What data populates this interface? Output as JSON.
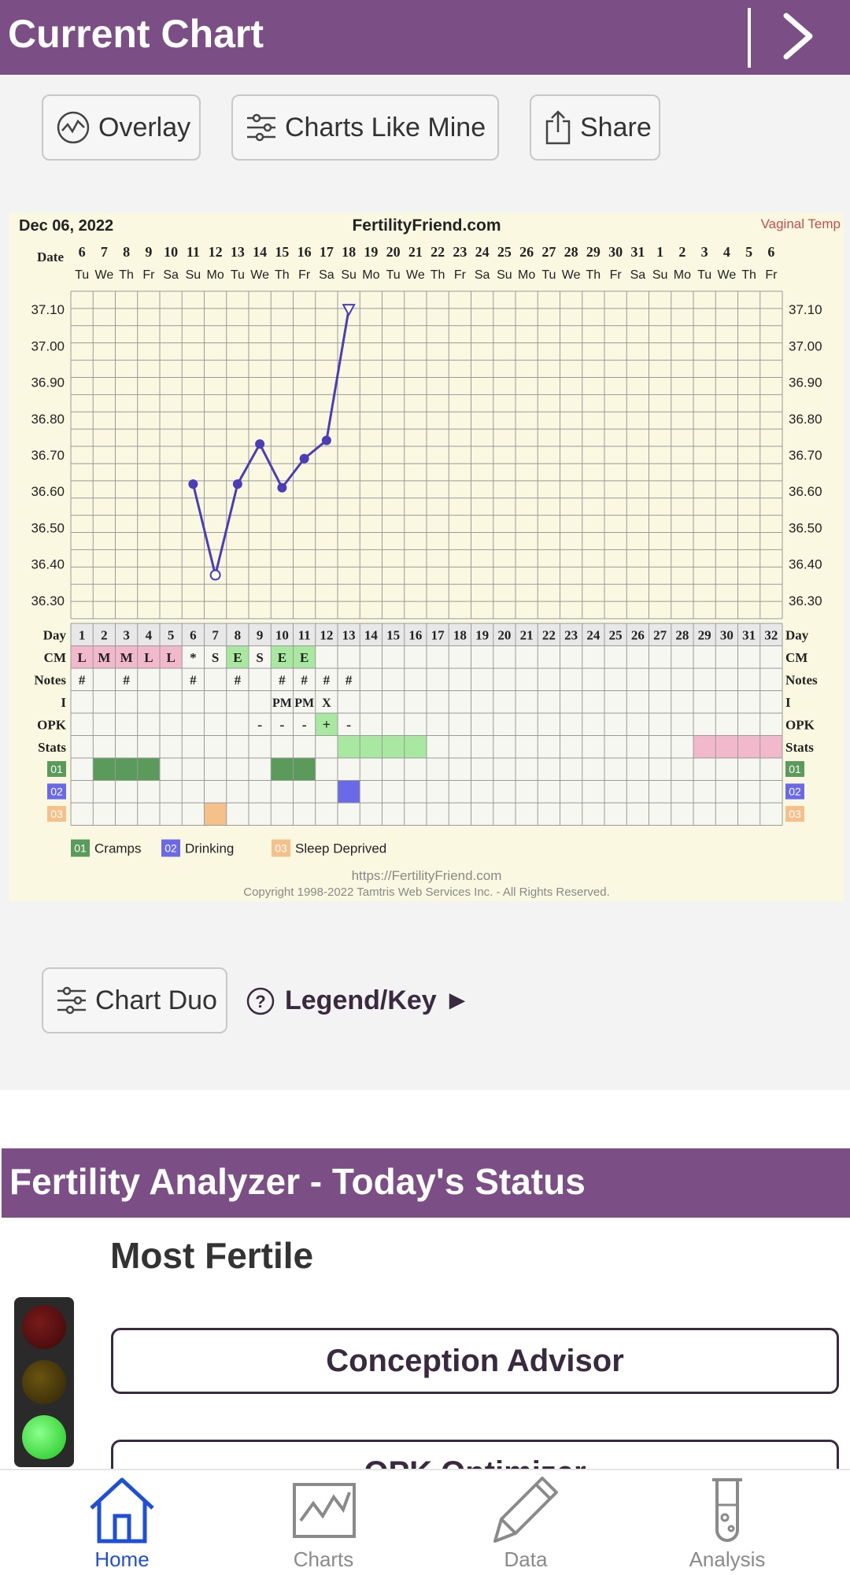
{
  "header": {
    "title": "Current Chart",
    "next_icon": "chevron-right-icon"
  },
  "toolbar": {
    "overlay_label": "Overlay",
    "charts_like_mine_label": "Charts Like Mine",
    "share_label": "Share"
  },
  "chart": {
    "date": "Dec 06, 2022",
    "site": "FertilityFriend.com",
    "temp_type": "Vaginal Temp",
    "date_label": "Date",
    "dates": [
      "6",
      "7",
      "8",
      "9",
      "10",
      "11",
      "12",
      "13",
      "14",
      "15",
      "16",
      "17",
      "18",
      "19",
      "20",
      "21",
      "22",
      "23",
      "24",
      "25",
      "26",
      "27",
      "28",
      "29",
      "30",
      "31",
      "1",
      "2",
      "3",
      "4",
      "5",
      "6"
    ],
    "weekdays": [
      "Tu",
      "We",
      "Th",
      "Fr",
      "Sa",
      "Su",
      "Mo",
      "Tu",
      "We",
      "Th",
      "Fr",
      "Sa",
      "Su",
      "Mo",
      "Tu",
      "We",
      "Th",
      "Fr",
      "Sa",
      "Su",
      "Mo",
      "Tu",
      "We",
      "Th",
      "Fr",
      "Sa",
      "Su",
      "Mo",
      "Tu",
      "We",
      "Th",
      "Fr"
    ],
    "y_ticks": [
      "37.10",
      "37.00",
      "36.90",
      "36.80",
      "36.70",
      "36.60",
      "36.50",
      "36.40",
      "36.30"
    ],
    "row_labels": {
      "day": "Day",
      "cm": "CM",
      "notes": "Notes",
      "i": "I",
      "opk": "OPK",
      "stats": "Stats",
      "s1": "01",
      "s2": "02",
      "s3": "03"
    },
    "days": [
      "1",
      "2",
      "3",
      "4",
      "5",
      "6",
      "7",
      "8",
      "9",
      "10",
      "11",
      "12",
      "13",
      "14",
      "15",
      "16",
      "17",
      "18",
      "19",
      "20",
      "21",
      "22",
      "23",
      "24",
      "25",
      "26",
      "27",
      "28",
      "29",
      "30",
      "31",
      "32"
    ],
    "cm": [
      "L",
      "M",
      "M",
      "L",
      "L",
      "*",
      "S",
      "E",
      "S",
      "E",
      "E",
      "",
      "",
      "",
      "",
      "",
      "",
      "",
      "",
      "",
      "",
      "",
      "",
      "",
      "",
      "",
      "",
      "",
      "",
      "",
      "",
      ""
    ],
    "notes": [
      "#",
      "",
      "#",
      "",
      "",
      "#",
      "",
      "#",
      "",
      "#",
      "#",
      "#",
      "#",
      "",
      "",
      "",
      "",
      "",
      "",
      "",
      "",
      "",
      "",
      "",
      "",
      "",
      "",
      "",
      "",
      "",
      "",
      ""
    ],
    "intercourse": [
      "",
      "",
      "",
      "",
      "",
      "",
      "",
      "",
      "",
      "PM",
      "PM",
      "X",
      "",
      "",
      "",
      "",
      "",
      "",
      "",
      "",
      "",
      "",
      "",
      "",
      "",
      "",
      "",
      "",
      "",
      "",
      "",
      ""
    ],
    "opk": [
      "",
      "",
      "",
      "",
      "",
      "",
      "",
      "",
      "-",
      "-",
      "-",
      "+",
      "-",
      "",
      "",
      "",
      "",
      "",
      "",
      "",
      "",
      "",
      "",
      "",
      "",
      "",
      "",
      "",
      "",
      "",
      "",
      ""
    ],
    "legend": [
      {
        "code": "01",
        "label": "Cramps",
        "color": "#5a9a5a"
      },
      {
        "code": "02",
        "label": "Drinking",
        "color": "#6a6ae8"
      },
      {
        "code": "03",
        "label": "Sleep Deprived",
        "color": "#f5c08a"
      }
    ],
    "footer_url": "https://FertilityFriend.com",
    "copyright": "Copyright 1998-2022 Tamtris Web Services Inc. - All Rights Reserved."
  },
  "chart_data": {
    "type": "line",
    "x": [
      6,
      7,
      8,
      9,
      10,
      11,
      12,
      13
    ],
    "values": [
      36.62,
      36.37,
      36.62,
      36.73,
      36.61,
      36.69,
      36.74,
      37.1
    ],
    "open_markers": [
      7,
      13
    ],
    "ylim": [
      36.25,
      37.15
    ],
    "xlabel": "Day",
    "ylabel": "",
    "title": "",
    "grid": true,
    "colors": {
      "line": "#4b3cb8",
      "background": "#fbf8e2",
      "grid": "#9a9a9a"
    }
  },
  "actions": {
    "chart_duo_label": "Chart Duo",
    "legend_key_label": "Legend/Key ►"
  },
  "analyzer": {
    "title": "Fertility Analyzer - Today's Status",
    "status": "Most Fertile",
    "buttons": [
      "Conception Advisor",
      "OPK Optimizer"
    ]
  },
  "nav": [
    {
      "label": "Home",
      "icon": "home-icon",
      "active": true
    },
    {
      "label": "Charts",
      "icon": "chart-icon",
      "active": false
    },
    {
      "label": "Data",
      "icon": "pencil-icon",
      "active": false
    },
    {
      "label": "Analysis",
      "icon": "test-tube-icon",
      "active": false
    }
  ]
}
